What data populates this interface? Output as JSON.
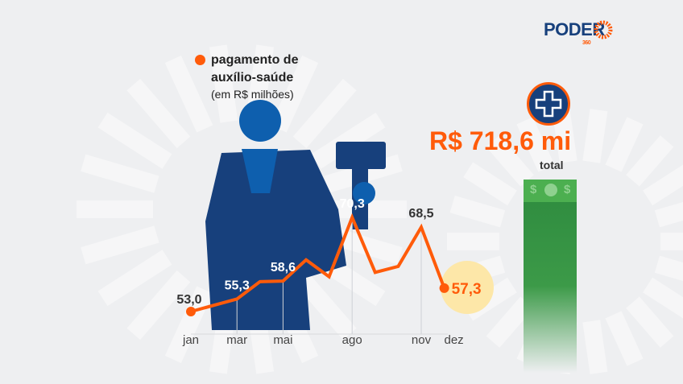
{
  "brand": {
    "name": "PODER",
    "sub": "360"
  },
  "legend": {
    "label": "pagamento de auxílio-saúde",
    "unit": "(em R$ milhões)"
  },
  "total": {
    "value": "R$ 718,6 mi",
    "label": "total",
    "icon": "medical-cross-icon"
  },
  "colors": {
    "line": "#ff5b0a",
    "figure": "#17407c",
    "highlight": "#fde7a8",
    "money": "#2d8a3e"
  },
  "chart_data": {
    "type": "line",
    "title": "",
    "xlabel": "",
    "ylabel": "",
    "x_ticks": [
      "jan",
      "mar",
      "mai",
      "ago",
      "nov",
      "dez"
    ],
    "points": [
      {
        "month": "jan",
        "value": 53.0,
        "label": "53,0"
      },
      {
        "month": "mar",
        "value": 55.3,
        "label": "55,3"
      },
      {
        "month": "abr",
        "value": 58.5,
        "label": ""
      },
      {
        "month": "mai",
        "value": 58.6,
        "label": "58,6"
      },
      {
        "month": "jun",
        "value": 62.5,
        "label": ""
      },
      {
        "month": "jul",
        "value": 59.4,
        "label": ""
      },
      {
        "month": "ago",
        "value": 70.3,
        "label": "70,3"
      },
      {
        "month": "set",
        "value": 60.2,
        "label": ""
      },
      {
        "month": "out",
        "value": 61.3,
        "label": ""
      },
      {
        "month": "nov",
        "value": 68.5,
        "label": "68,5"
      },
      {
        "month": "dez",
        "value": 57.3,
        "label": "57,3"
      }
    ],
    "grid": false
  }
}
